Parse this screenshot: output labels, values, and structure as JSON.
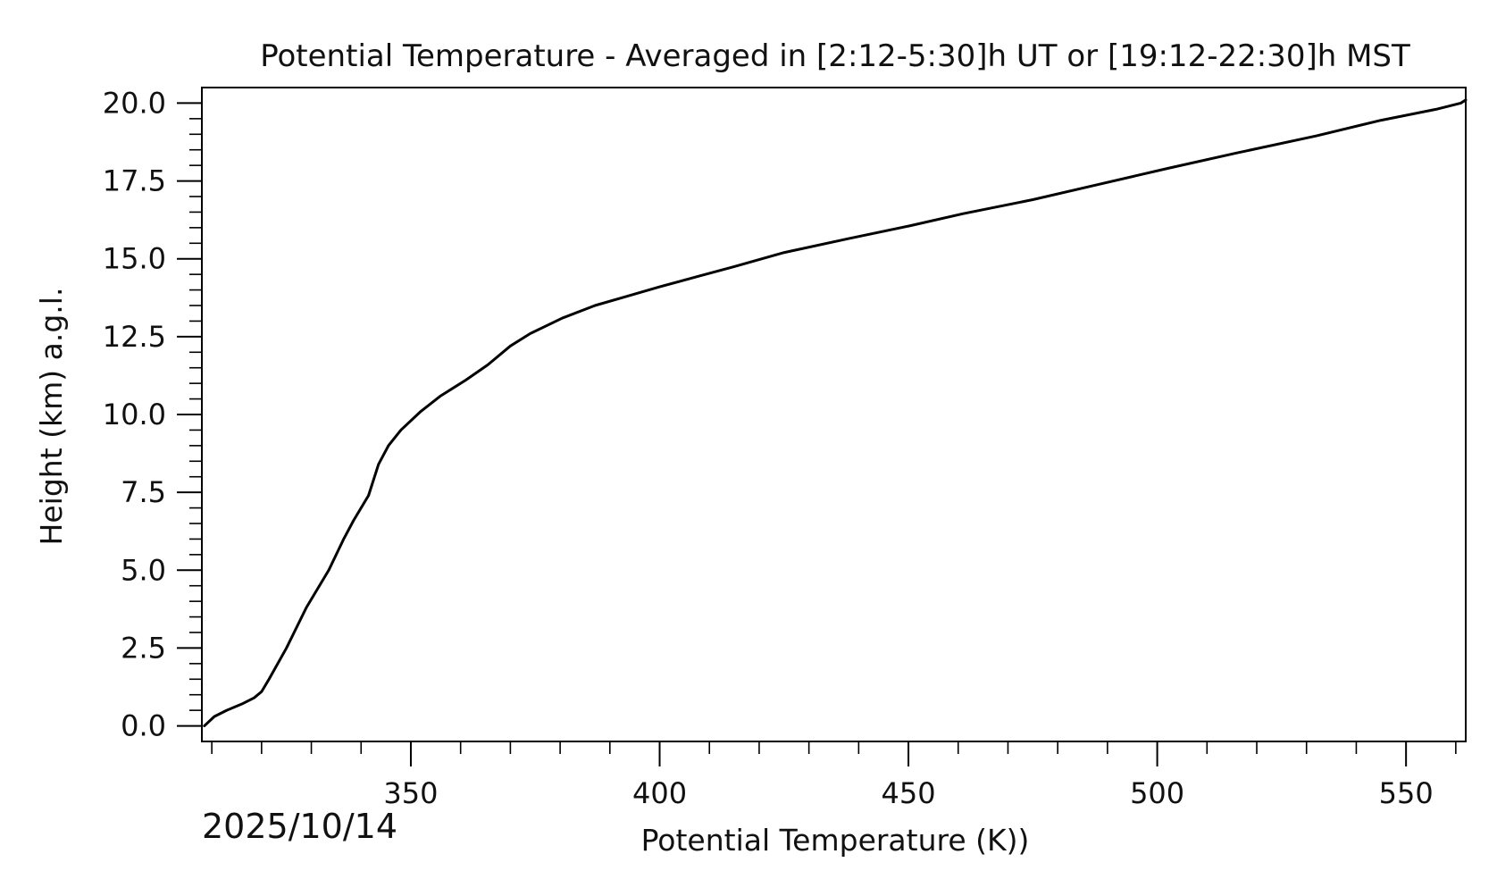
{
  "chart_data": {
    "type": "line",
    "title": "Potential Temperature - Averaged in [2:12-5:30]h UT or [19:12-22:30]h MST",
    "xlabel": "Potential Temperature (K))",
    "ylabel": "Height (km) a.g.l.",
    "date_text": "2025/10/14",
    "xlim": [
      308,
      562
    ],
    "ylim": [
      -0.5,
      20.5
    ],
    "xticks": [
      350,
      400,
      450,
      500,
      550
    ],
    "xtick_labels": [
      "350",
      "400",
      "450",
      "500",
      "550"
    ],
    "yticks": [
      0,
      2.5,
      5,
      7.5,
      10,
      12.5,
      15,
      17.5,
      20
    ],
    "ytick_labels": [
      "0.0",
      "2.5",
      "5.0",
      "7.5",
      "10.0",
      "12.5",
      "15.0",
      "17.5",
      "20.0"
    ],
    "grid": false,
    "line_color": "#000000",
    "series": [
      {
        "x": [
          308.5,
          310.5,
          313,
          316,
          318.5,
          320,
          321.5,
          325,
          329,
          333.5,
          336.5,
          338.5,
          341.5,
          343.5,
          345.5,
          348,
          352,
          356,
          361,
          365.5,
          370,
          374,
          380.5,
          387,
          393.5,
          400,
          408,
          415,
          425,
          438,
          450,
          461,
          475,
          488.5,
          502,
          516,
          532,
          545,
          556,
          561,
          562
        ],
        "y": [
          0,
          0.3,
          0.5,
          0.7,
          0.9,
          1.1,
          1.5,
          2.5,
          3.8,
          5.0,
          6.0,
          6.6,
          7.4,
          8.4,
          9.0,
          9.5,
          10.1,
          10.6,
          11.1,
          11.6,
          12.2,
          12.6,
          13.1,
          13.5,
          13.8,
          14.1,
          14.45,
          14.75,
          15.2,
          15.65,
          16.05,
          16.45,
          16.9,
          17.4,
          17.9,
          18.4,
          18.95,
          19.45,
          19.8,
          20.0,
          20.1
        ]
      }
    ]
  }
}
